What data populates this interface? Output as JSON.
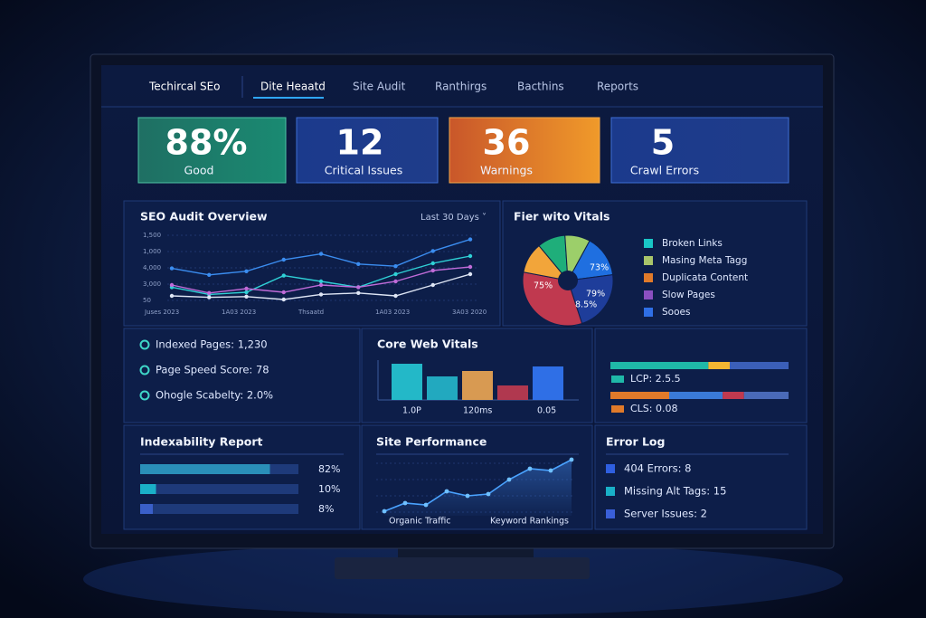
{
  "nav": {
    "brand": "Techircal SEo",
    "tabs": [
      "Dite Heaatd",
      "Site Audit",
      "Ranthirgs",
      "Bacthins",
      "Reports"
    ]
  },
  "cards": [
    {
      "value": "88%",
      "label": "Good"
    },
    {
      "value": "12",
      "label": "Critical Issues"
    },
    {
      "value": "36",
      "label": "Warnings"
    },
    {
      "value": "5",
      "label": "Crawl Errors"
    }
  ],
  "audit_overview": {
    "title": "SEO Audit Overview",
    "range": "Last 30 Days ˅",
    "y_labels": [
      "1,500",
      "1,000",
      "4,000",
      "3,000",
      "50"
    ],
    "x_labels": [
      "Juses 2023",
      "1A03 2023",
      "Thsaatd",
      "1A03 2023",
      "3A03 2020"
    ],
    "series": [
      {
        "color": "#3b8df0",
        "values": [
          48,
          39,
          44,
          60,
          68,
          54,
          51,
          72,
          88
        ]
      },
      {
        "color": "#2fd1d6",
        "values": [
          22,
          12,
          15,
          38,
          30,
          22,
          40,
          55,
          65
        ]
      },
      {
        "color": "#c06bd8",
        "values": [
          25,
          14,
          20,
          15,
          25,
          22,
          30,
          45,
          50
        ]
      },
      {
        "color": "#dfe6f5",
        "values": [
          10,
          8,
          9,
          5,
          12,
          14,
          10,
          25,
          40
        ]
      }
    ]
  },
  "vitals_pie": {
    "title": "Fier wito Vitals",
    "slices": [
      {
        "color": "#1f6fe0",
        "value": 15
      },
      {
        "color": "#1e3d9a",
        "value": 22
      },
      {
        "color": "#c0394f",
        "value": 33
      },
      {
        "color": "#f2a53a",
        "value": 11
      },
      {
        "color": "#1fae7a",
        "value": 10
      },
      {
        "color": "#9ccf6a",
        "value": 9
      }
    ],
    "labels": [
      "73%",
      "75%",
      "79%",
      "8.5%"
    ],
    "legend": [
      {
        "label": "Broken Links",
        "color": "#19c6c6"
      },
      {
        "label": "Masing Meta Tagg",
        "color": "#a8c46a"
      },
      {
        "label": "Duplicata Content",
        "color": "#e07a2a"
      },
      {
        "label": "Slow Pages",
        "color": "#8a4fc0"
      },
      {
        "label": "Sooes",
        "color": "#2f6fe6"
      }
    ]
  },
  "stats": [
    "Indexed Pages: 1,230",
    "Page Speed Score: 78",
    "Ohogle Scabelty: 2.0%"
  ],
  "core_web_vitals": {
    "title": "Core Web Vitals",
    "labels": [
      "1.0P",
      "120ms",
      "0.05"
    ],
    "bars": [
      {
        "color": "#23b8c8",
        "value": 40
      },
      {
        "color": "#22a9bf",
        "value": 26
      },
      {
        "color": "#d89a52",
        "value": 32
      },
      {
        "color": "#b0384f",
        "value": 16
      },
      {
        "color": "#2f6fe6",
        "value": 37
      }
    ]
  },
  "segment_bars": [
    {
      "label": "LCP: 2.5.5",
      "segments": [
        {
          "color": "#1fb8a8",
          "value": 55
        },
        {
          "color": "#f2b632",
          "value": 12
        },
        {
          "color": "#3b5fb8",
          "value": 33
        }
      ]
    },
    {
      "label": "CLS: 0.08",
      "segments": [
        {
          "color": "#e07a2a",
          "value": 33
        },
        {
          "color": "#3a7ad8",
          "value": 30
        },
        {
          "color": "#c0394f",
          "value": 12
        },
        {
          "color": "#4a6ab8",
          "value": 25
        }
      ]
    }
  ],
  "indexability": {
    "title": "Indexability Report",
    "bars": [
      {
        "value": 82,
        "value_label": "82%",
        "color": "#2a8fb8"
      },
      {
        "value": 10,
        "value_label": "10%",
        "color": "#1ab0c8"
      },
      {
        "value": 8,
        "value_label": "8%",
        "color": "#3a5fc8"
      }
    ]
  },
  "site_performance": {
    "title": "Site Performance",
    "labels": [
      "Organic Traffic",
      "Keyword Rankings"
    ],
    "values": [
      5,
      14,
      12,
      27,
      22,
      24,
      40,
      52,
      50,
      62
    ]
  },
  "error_log": {
    "title": "Error Log",
    "items": [
      {
        "label": "404 Errors: 8",
        "color": "#2f5fe0"
      },
      {
        "label": "Missing Alt Tags: 15",
        "color": "#19b0c8"
      },
      {
        "label": "Server Issues: 2",
        "color": "#3a5fd8"
      }
    ]
  }
}
